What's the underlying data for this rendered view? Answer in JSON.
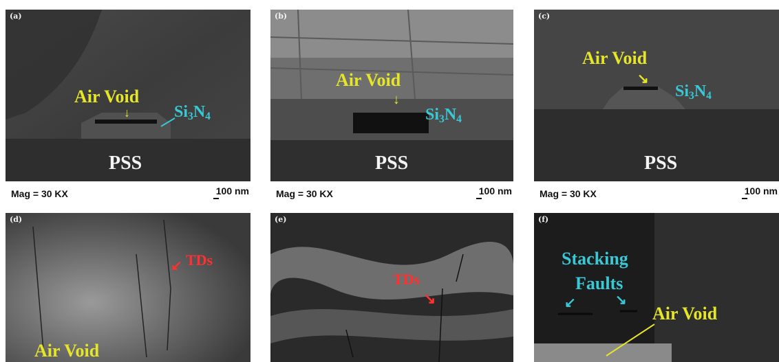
{
  "panels": [
    {
      "label": "(a)",
      "mag": "Mag = 30 KX",
      "scale": "100 nm",
      "substrate": "PSS",
      "air_void": "Air Void",
      "si3n4_main": "Si",
      "si3n4_sub": "3",
      "si3n4_tail": "N",
      "si3n4_sub2": "4"
    },
    {
      "label": "(b)",
      "mag": "Mag = 30 KX",
      "scale": "100 nm",
      "substrate": "PSS",
      "air_void": "Air Void",
      "si3n4_main": "Si",
      "si3n4_sub": "3",
      "si3n4_tail": "N",
      "si3n4_sub2": "4"
    },
    {
      "label": "(c)",
      "mag": "Mag = 30 KX",
      "scale": "100 nm",
      "substrate": "PSS",
      "air_void": "Air Void",
      "si3n4_main": "Si",
      "si3n4_sub": "3",
      "si3n4_tail": "N",
      "si3n4_sub2": "4"
    },
    {
      "label": "(d)",
      "tds": "TDs",
      "air_void": "Air Void"
    },
    {
      "label": "(e)",
      "tds": "TDs"
    },
    {
      "label": "(f)",
      "stacking_1": "Stacking",
      "stacking_2": "Faults",
      "air_void": "Air Void"
    }
  ],
  "colors": {
    "yellow": "#e6e629",
    "cyan": "#39c9d6",
    "red": "#ff3030"
  }
}
